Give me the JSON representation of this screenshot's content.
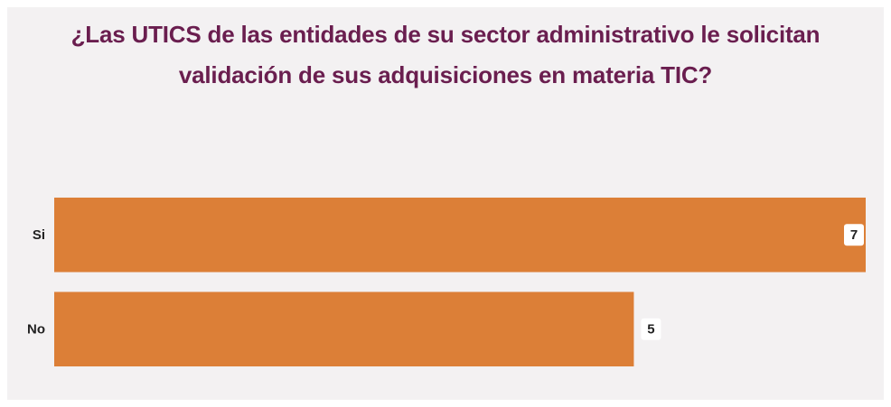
{
  "chart_data": {
    "type": "hbar",
    "title": "¿Las UTICS de las entidades de su sector administrativo le solicitan validación de sus adquisiciones en materia TIC?",
    "categories": [
      "Si",
      "No"
    ],
    "values": [
      7,
      5
    ],
    "color": "#dc7f37",
    "xlim": [
      0,
      7
    ]
  }
}
